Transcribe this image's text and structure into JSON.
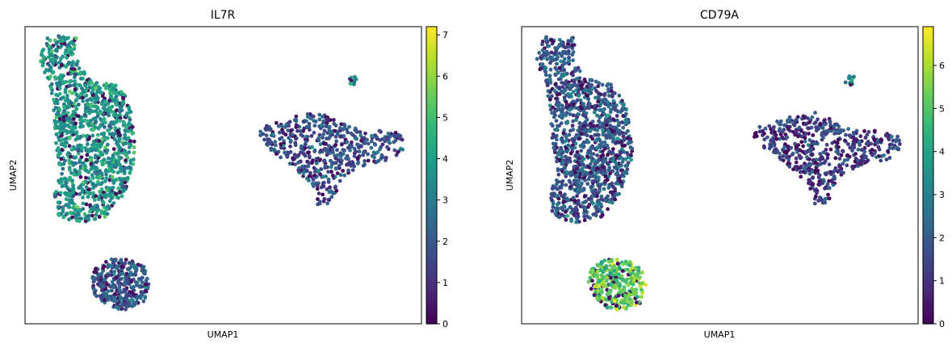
{
  "chart_data": [
    {
      "type": "scatter",
      "title": "IL7R",
      "xlabel": "UMAP1",
      "ylabel": "UMAP2",
      "colorbar": {
        "colormap": "viridis",
        "range": [
          0,
          7.2
        ],
        "ticks": [
          "0",
          "1",
          "2",
          "3",
          "4",
          "5",
          "6",
          "7"
        ]
      },
      "grid": false,
      "clusters": [
        {
          "name": "",
          "approx_expression": 3.8
        },
        {
          "name": "",
          "approx_expression": 1.8
        },
        {
          "name": "",
          "approx_expression": 2.0
        },
        {
          "name": "",
          "approx_expression": 3.0
        }
      ]
    },
    {
      "type": "scatter",
      "title": "CD79A",
      "xlabel": "UMAP1",
      "ylabel": "UMAP2",
      "colorbar": {
        "colormap": "viridis",
        "range": [
          0,
          6.9
        ],
        "ticks": [
          "0",
          "1",
          "2",
          "3",
          "4",
          "5",
          "6"
        ]
      },
      "grid": false,
      "clusters": [
        {
          "name": "",
          "approx_expression": 2.0
        },
        {
          "name": "",
          "approx_expression": 1.3
        },
        {
          "name": "",
          "approx_expression": 5.2
        },
        {
          "name": "",
          "approx_expression": 3.0
        }
      ]
    }
  ]
}
